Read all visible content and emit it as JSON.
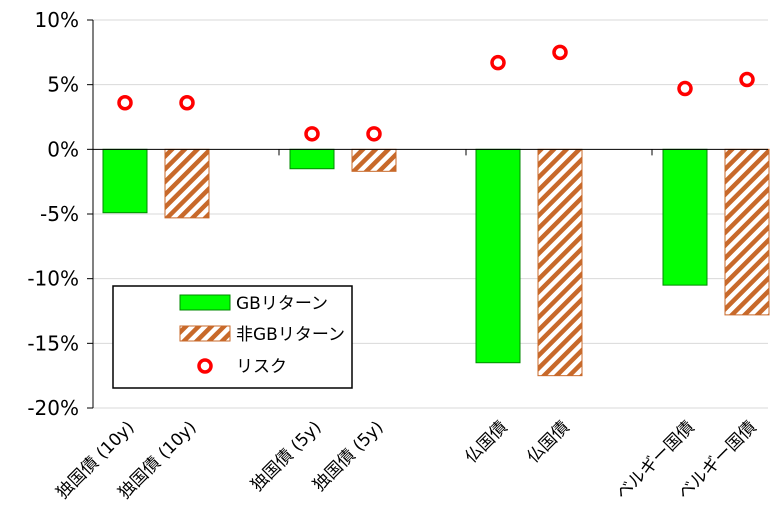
{
  "chart_data": {
    "type": "bar",
    "categories": [
      "独国債 (10y)",
      "独国債 (10y)",
      "独国債 (5y)",
      "独国債 (5y)",
      "仏国債",
      "仏国債",
      "ベルギー国債",
      "ベルギー国債"
    ],
    "series": [
      {
        "name": "GBリターン",
        "type": "bar",
        "color": "#00ff00",
        "values": [
          -4.9,
          null,
          -1.5,
          null,
          -16.5,
          null,
          -10.5,
          null
        ]
      },
      {
        "name": "非GBリターン",
        "type": "bar",
        "pattern": "hatch",
        "color": "#c8692a",
        "values": [
          null,
          -5.3,
          null,
          -1.7,
          null,
          -17.5,
          null,
          -12.8
        ]
      },
      {
        "name": "リスク",
        "type": "scatter",
        "marker": "circle-open",
        "color": "#ff0000",
        "values": [
          3.6,
          3.6,
          1.2,
          1.2,
          6.7,
          7.5,
          4.7,
          5.4
        ]
      }
    ],
    "ylim": [
      -20,
      10
    ],
    "yticks": [
      "10%",
      "5%",
      "0%",
      "-5%",
      "-10%",
      "-15%",
      "-20%"
    ],
    "grid": true,
    "legend_position": "bottom-left"
  }
}
